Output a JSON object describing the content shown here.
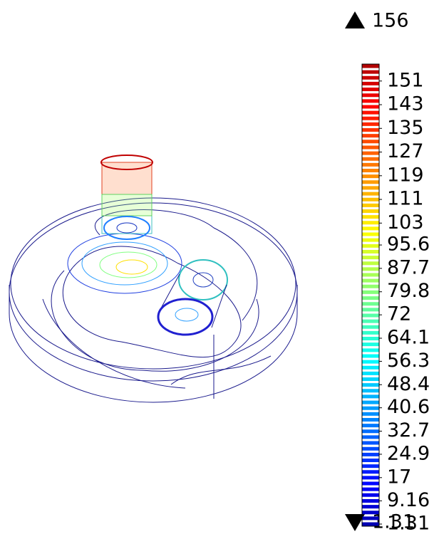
{
  "chart_data": {
    "type": "colorbar",
    "ylim": [
      1.31,
      156
    ],
    "yticks": [
      151,
      143,
      135,
      127,
      119,
      111,
      103,
      95.6,
      87.7,
      79.8,
      72,
      64.1,
      56.3,
      48.4,
      40.6,
      32.7,
      24.9,
      17,
      9.16,
      1.31
    ],
    "colormap": "jet"
  }
}
